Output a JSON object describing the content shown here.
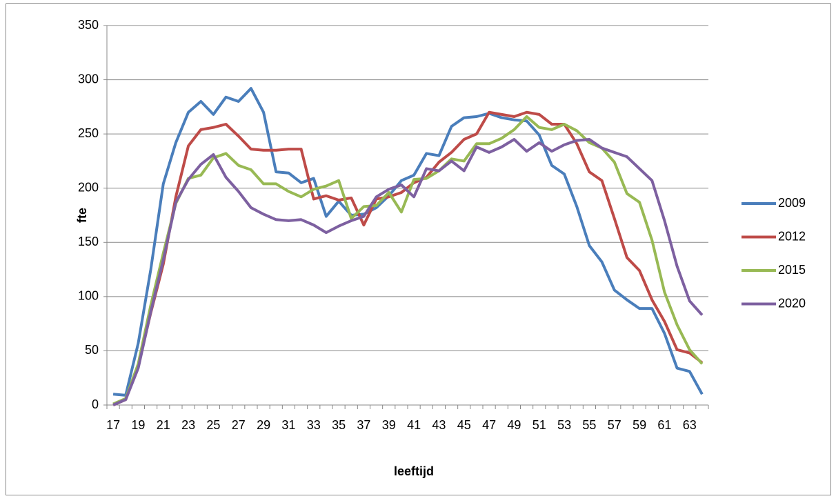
{
  "chart_data": {
    "type": "line",
    "x_label": "leeftijd",
    "y_label": "fte",
    "categories": [
      "17",
      null,
      "19",
      null,
      "21",
      null,
      "23",
      null,
      "25",
      null,
      "27",
      null,
      "29",
      null,
      "31",
      null,
      "33",
      null,
      "35",
      null,
      "37",
      null,
      "39",
      null,
      "41",
      null,
      "43",
      null,
      "45",
      null,
      "47",
      null,
      "49",
      null,
      "51",
      null,
      "53",
      null,
      "55",
      null,
      "57",
      null,
      "59",
      null,
      "61",
      null,
      "63",
      null
    ],
    "series": [
      {
        "name": "2009",
        "color": "#4a7ebb",
        "values": [
          10,
          9,
          57,
          125,
          204,
          242,
          270,
          280,
          268,
          284,
          280,
          292,
          270,
          215,
          214,
          205,
          209,
          174,
          188,
          175,
          176,
          182,
          193,
          207,
          212,
          232,
          230,
          257,
          265,
          266,
          269,
          265,
          263,
          262,
          249,
          221,
          213,
          183,
          147,
          132,
          106,
          97,
          89,
          89,
          66,
          34,
          31,
          10
        ]
      },
      {
        "name": "2012",
        "color": "#be4b48",
        "values": [
          0,
          5,
          36,
          85,
          130,
          192,
          239,
          254,
          256,
          259,
          248,
          236,
          235,
          235,
          236,
          236,
          190,
          193,
          189,
          191,
          166,
          190,
          192,
          196,
          205,
          210,
          224,
          233,
          245,
          250,
          270,
          268,
          266,
          270,
          268,
          259,
          259,
          241,
          215,
          207,
          172,
          136,
          124,
          97,
          77,
          51,
          48,
          39
        ]
      },
      {
        "name": "2015",
        "color": "#98b954",
        "values": [
          1,
          6,
          38,
          92,
          140,
          186,
          209,
          212,
          228,
          232,
          221,
          217,
          204,
          204,
          197,
          192,
          199,
          202,
          207,
          172,
          183,
          184,
          196,
          178,
          208,
          209,
          216,
          227,
          225,
          241,
          241,
          246,
          254,
          266,
          256,
          254,
          259,
          253,
          242,
          237,
          224,
          195,
          187,
          152,
          104,
          74,
          51,
          38
        ]
      },
      {
        "name": "2020",
        "color": "#7d60a0",
        "values": [
          0,
          5,
          34,
          86,
          134,
          187,
          208,
          222,
          231,
          210,
          197,
          182,
          176,
          171,
          170,
          171,
          166,
          159,
          165,
          170,
          174,
          192,
          199,
          203,
          192,
          218,
          216,
          225,
          216,
          238,
          233,
          238,
          245,
          234,
          242,
          234,
          240,
          244,
          245,
          237,
          233,
          229,
          218,
          207,
          170,
          128,
          96,
          83
        ]
      }
    ],
    "ylim": [
      0,
      350
    ],
    "yticks": [
      0,
      50,
      100,
      150,
      200,
      250,
      300,
      350
    ],
    "grid": true,
    "legend": "right"
  }
}
